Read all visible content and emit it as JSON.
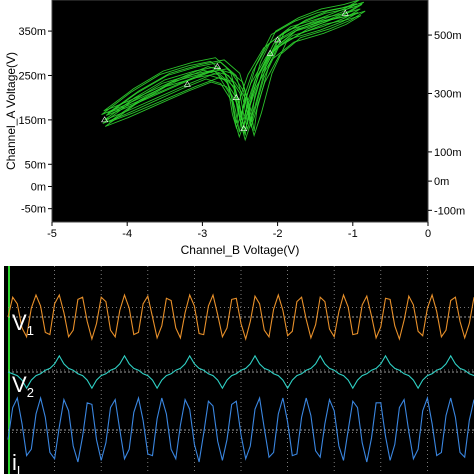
{
  "chart_data": [
    {
      "type": "line",
      "title": "",
      "xlabel": "Channel_B Voltage(V)",
      "ylabel": "Channel_A Voltage(V)",
      "xlim": [
        -5,
        0
      ],
      "x_ticks": [
        "-5",
        "-4",
        "-3",
        "-2",
        "-1",
        "0"
      ],
      "x_tick_values": [
        -5,
        -4,
        -3,
        -2,
        -1,
        0
      ],
      "y_ticks_left": [
        "350m",
        "250m",
        "150m",
        "50m",
        "0m",
        "-50m"
      ],
      "y_ticks_left_values": [
        0.35,
        0.25,
        0.15,
        0.05,
        0.0,
        -0.05
      ],
      "y_ticks_right": [
        "500m",
        "300m",
        "100m",
        "0m",
        "-100m"
      ],
      "y_ticks_right_values": [
        0.5,
        0.3,
        0.1,
        0.0,
        -0.1
      ],
      "ylim": [
        -0.08,
        0.42
      ],
      "grid": false,
      "background": "#000000",
      "trace_color": "#2fd62f",
      "series": [
        {
          "values_x": [
            -4.3,
            -4.0,
            -3.6,
            -3.2,
            -2.9,
            -2.7,
            -2.55,
            -2.5,
            -2.45,
            -2.35,
            -2.2,
            -2.0,
            -1.7,
            -1.4,
            -1.1,
            -0.9,
            -1.1,
            -1.4,
            -1.8,
            -2.1,
            -2.3,
            -2.4,
            -2.45,
            -2.5,
            -2.6,
            -2.8,
            -3.1,
            -3.5,
            -3.9,
            -4.3
          ],
          "values_y": [
            0.15,
            0.17,
            0.2,
            0.23,
            0.25,
            0.24,
            0.2,
            0.15,
            0.12,
            0.17,
            0.26,
            0.33,
            0.36,
            0.38,
            0.39,
            0.4,
            0.38,
            0.36,
            0.34,
            0.3,
            0.24,
            0.19,
            0.13,
            0.18,
            0.24,
            0.27,
            0.26,
            0.24,
            0.2,
            0.15
          ]
        }
      ]
    },
    {
      "type": "line",
      "title": "",
      "background": "#000000",
      "grid": true,
      "x": [
        0,
        0.2,
        0.4,
        0.6,
        0.8,
        1,
        1.2,
        1.4,
        1.6,
        1.8,
        2,
        2.2,
        2.4,
        2.6,
        2.8,
        3,
        3.2,
        3.4,
        3.6,
        3.8,
        4,
        4.2,
        4.4,
        4.6,
        4.8,
        5,
        5.2,
        5.4,
        5.6,
        5.8,
        6,
        6.2,
        6.4,
        6.6,
        6.8,
        7,
        7.2,
        7.4,
        7.6,
        7.8,
        8,
        8.2,
        8.4,
        8.6,
        8.8,
        9,
        9.2,
        9.4,
        9.6,
        9.8,
        10,
        10.2,
        10.4,
        10.6,
        10.8,
        11,
        11.2,
        11.4,
        11.6,
        11.8,
        12,
        12.2,
        12.4,
        12.6,
        12.8,
        13,
        13.2,
        13.4,
        13.6,
        13.8,
        14,
        14.2,
        14.4,
        14.6,
        14.8,
        15,
        15.2,
        15.4,
        15.6,
        15.8,
        16,
        16.2,
        16.4,
        16.6,
        16.8,
        17,
        17.2,
        17.4,
        17.6,
        17.8,
        18,
        18.2,
        18.4,
        18.6,
        18.8,
        19,
        19.2,
        19.4,
        19.6,
        19.8,
        20
      ],
      "series": [
        {
          "name": "V",
          "subscript": "1",
          "color": "#e8902a",
          "values": [
            0,
            0.9,
            0.6,
            -0.5,
            -0.9,
            0.4,
            1,
            0.5,
            -0.7,
            -0.8,
            0.6,
            1,
            0.2,
            -0.9,
            -0.6,
            0.8,
            0.9,
            -0.2,
            -1,
            -0.3,
            0.9,
            0.7,
            -0.6,
            -0.9,
            0.3,
            1,
            0.4,
            -0.8,
            -0.7,
            0.6,
            0.95,
            0,
            -0.95,
            -0.4,
            0.85,
            0.75,
            -0.5,
            -0.95,
            0.2,
            1,
            0.5,
            -0.75,
            -0.8,
            0.5,
            1,
            0.1,
            -0.9,
            -0.5,
            0.8,
            0.85,
            -0.3,
            -1,
            -0.2,
            0.95,
            0.6,
            -0.6,
            -0.9,
            0.35,
            1,
            0.3,
            -0.85,
            -0.65,
            0.7,
            0.9,
            -0.1,
            -0.95,
            -0.35,
            0.9,
            0.7,
            -0.55,
            -0.9,
            0.25,
            1,
            0.45,
            -0.8,
            -0.75,
            0.55,
            0.95,
            0.05,
            -0.95,
            -0.45,
            0.85,
            0.8,
            -0.4,
            -1,
            -0.15,
            0.95,
            0.55,
            -0.65,
            -0.85,
            0.4,
            1,
            0.25,
            -0.9,
            -0.6,
            0.75,
            0.9,
            -0.2,
            -0.95,
            -0.3,
            0.9
          ]
        },
        {
          "name": "V",
          "subscript": "2",
          "color": "#2fd0c4",
          "values": [
            0,
            -0.1,
            -0.2,
            -0.45,
            -0.9,
            -0.45,
            -0.2,
            -0.1,
            0.1,
            0.2,
            0.45,
            0.9,
            0.45,
            0.2,
            0.1,
            -0.1,
            -0.2,
            -0.45,
            -0.9,
            -0.45,
            -0.2,
            -0.1,
            0.1,
            0.2,
            0.45,
            0.9,
            0.45,
            0.2,
            0.1,
            -0.1,
            -0.2,
            -0.45,
            -0.9,
            -0.45,
            -0.2,
            -0.1,
            0.1,
            0.2,
            0.45,
            0.9,
            0.45,
            0.2,
            0.1,
            -0.1,
            -0.2,
            -0.45,
            -0.9,
            -0.45,
            -0.2,
            -0.1,
            0.1,
            0.2,
            0.45,
            0.9,
            0.45,
            0.2,
            0.1,
            -0.1,
            -0.2,
            -0.45,
            -0.9,
            -0.45,
            -0.2,
            -0.1,
            0.1,
            0.2,
            0.45,
            0.9,
            0.45,
            0.2,
            0.1,
            -0.1,
            -0.2,
            -0.45,
            -0.9,
            -0.45,
            -0.2,
            -0.1,
            0.1,
            0.2,
            0.45,
            0.9,
            0.45,
            0.2,
            0.1,
            -0.1,
            -0.2,
            -0.45,
            -0.9,
            -0.45,
            -0.2,
            -0.1,
            0.1,
            0.2,
            0.45,
            0.9,
            0.45,
            0.2,
            0.1,
            -0.1,
            -0.2
          ]
        },
        {
          "name": "i",
          "subscript": "L",
          "color": "#3a86e0",
          "values": [
            -0.3,
            0.7,
            1,
            0.2,
            -0.8,
            -0.6,
            0.5,
            1,
            0.4,
            -0.7,
            -0.9,
            0.1,
            0.95,
            0.6,
            -0.5,
            -1,
            -0.2,
            0.85,
            0.8,
            -0.3,
            -0.95,
            -0.4,
            0.7,
            0.95,
            0,
            -0.9,
            -0.6,
            0.55,
            1,
            0.3,
            -0.75,
            -0.8,
            0.35,
            1,
            0.5,
            -0.6,
            -0.9,
            0.15,
            0.95,
            0.65,
            -0.45,
            -1,
            -0.1,
            0.9,
            0.75,
            -0.35,
            -0.95,
            -0.3,
            0.8,
            0.9,
            -0.15,
            -0.9,
            -0.5,
            0.65,
            1,
            0.05,
            -0.85,
            -0.7,
            0.5,
            1,
            0.25,
            -0.8,
            -0.75,
            0.4,
            1,
            0.45,
            -0.65,
            -0.85,
            0.2,
            0.95,
            0.6,
            -0.5,
            -0.95,
            0,
            0.9,
            0.7,
            -0.4,
            -1,
            -0.25,
            0.85,
            0.85,
            -0.2,
            -0.95,
            -0.45,
            0.7,
            0.95,
            -0.05,
            -0.9,
            -0.6,
            0.6,
            1,
            0.2,
            -0.8,
            -0.7,
            0.45,
            1,
            0.4,
            -0.7,
            -0.85,
            0.3,
            0.95
          ]
        }
      ]
    }
  ]
}
